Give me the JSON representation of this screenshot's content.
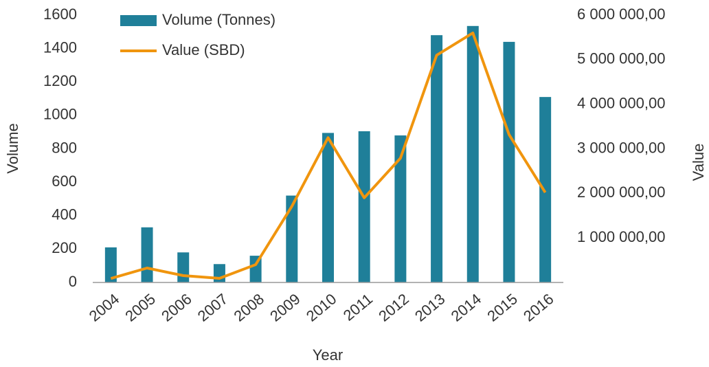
{
  "chart_data": {
    "type": "bar_line",
    "categories": [
      "2004",
      "2005",
      "2006",
      "2007",
      "2008",
      "2009",
      "2010",
      "2011",
      "2012",
      "2013",
      "2014",
      "2015",
      "2016"
    ],
    "series": [
      {
        "name": "Volume (Tonnes)",
        "type": "bar",
        "color": "#1f7f99",
        "values": [
          210,
          330,
          180,
          110,
          160,
          520,
          895,
          905,
          880,
          1480,
          1535,
          1440,
          1110
        ]
      },
      {
        "name": "Value (SBD)",
        "type": "line",
        "axis": "y2",
        "color": "#f0950e",
        "values": [
          90000,
          324000,
          154000,
          92000,
          400000,
          1710000,
          3250000,
          1900000,
          2790000,
          5100000,
          5600000,
          3320000,
          2020000
        ]
      }
    ],
    "xlabel": "Year",
    "ylabel": "Volume",
    "y2label": "Value",
    "ylim": [
      0,
      1600
    ],
    "yticks": [
      0,
      200,
      400,
      600,
      800,
      1000,
      1200,
      1400,
      1600
    ],
    "y2lim": [
      0,
      6000000
    ],
    "y2ticks": [
      {
        "value": 1000000,
        "label": "1 000 000,00"
      },
      {
        "value": 2000000,
        "label": "2 000 000,00"
      },
      {
        "value": 3000000,
        "label": "3 000 000,00"
      },
      {
        "value": 4000000,
        "label": "4 000 000,00"
      },
      {
        "value": 5000000,
        "label": "5 000 000,00"
      },
      {
        "value": 6000000,
        "label": "6 000 000,00"
      }
    ],
    "grid": false,
    "legend": "top-left"
  }
}
